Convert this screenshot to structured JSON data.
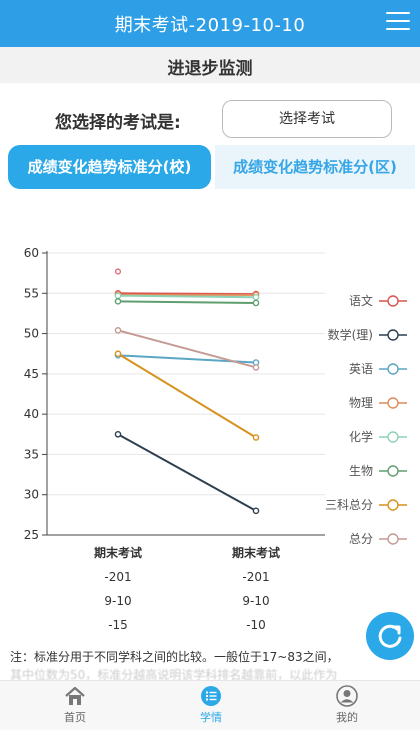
{
  "header": {
    "title": "期末考试-2019-10-10"
  },
  "section": {
    "title": "进退步监测"
  },
  "exam_select": {
    "label": "您选择的考试是:",
    "button": "选择考试"
  },
  "tabs": [
    {
      "label": "成绩变化趋势标准分(校)",
      "active": true
    },
    {
      "label": "成绩变化趋势标准分(区)",
      "active": false
    }
  ],
  "chart_data": {
    "type": "line",
    "categories": [
      [
        "期末考试",
        "-201",
        "9-10",
        "-15"
      ],
      [
        "期末考试",
        "-201",
        "9-10",
        "-10"
      ]
    ],
    "ylim": [
      25,
      60
    ],
    "yticks": [
      25,
      30,
      35,
      40,
      45,
      50,
      55,
      60
    ],
    "grid": true,
    "legend_position": "right",
    "series": [
      {
        "name": "语文",
        "color": "#d9534f",
        "values": [
          55.0,
          54.9
        ]
      },
      {
        "name": "数学(理)",
        "color": "#2c3e50",
        "values": [
          37.5,
          28.0
        ]
      },
      {
        "name": "英语",
        "color": "#5aa6c5",
        "values": [
          47.3,
          46.4
        ]
      },
      {
        "name": "物理",
        "color": "#e08a5a",
        "values": [
          54.8,
          54.8
        ]
      },
      {
        "name": "化学",
        "color": "#8fd1b4",
        "values": [
          54.7,
          54.5
        ]
      },
      {
        "name": "生物",
        "color": "#5f9e6e",
        "values": [
          54.0,
          53.8
        ]
      },
      {
        "name": "三科总分",
        "color": "#d6921e",
        "values": [
          47.5,
          37.1
        ]
      },
      {
        "name": "总分",
        "color": "#c49a94",
        "values": [
          50.4,
          45.8
        ]
      }
    ],
    "extra_points": [
      {
        "x": 0,
        "y": 57.7,
        "color": "#e0707a"
      }
    ]
  },
  "note": {
    "line1": "注：标准分用于不同学科之间的比较。一般位于17~83之间，",
    "line2": "其中位数为50，标准分越高说明该学科排名越靠前，以此作为"
  },
  "bottom_nav": [
    {
      "label": "首页",
      "icon": "home-icon"
    },
    {
      "label": "学情",
      "icon": "list-icon"
    },
    {
      "label": "我的",
      "icon": "user-icon"
    }
  ],
  "colors": {
    "primary": "#2e9fe6",
    "tab_active": "#2aa8e8",
    "tab_inactive_bg": "#e9f4fb"
  }
}
